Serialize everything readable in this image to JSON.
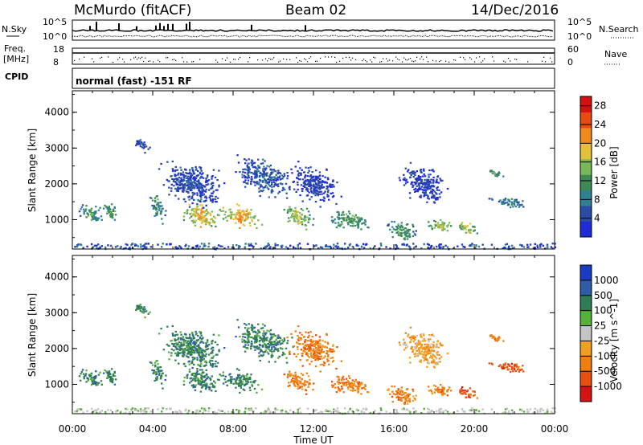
{
  "header": {
    "station": "McMurdo (fitACF)",
    "beam": "Beam 02",
    "date": "14/Dec/2016"
  },
  "top_panels": {
    "nsky_label": "N.Sky",
    "nsky_ticks": [
      "10^5",
      "10^0"
    ],
    "nsearch_label": "N.Search",
    "nsearch_ticks": [
      "10^5",
      "10^0"
    ],
    "freq_label": "Freq.",
    "freq_unit": "[MHz]",
    "freq_ticks": [
      "18",
      "8"
    ],
    "nave_label": "Nave",
    "nave_ticks": [
      "60",
      "0"
    ],
    "cpid_label": "CPID",
    "cpid_text": "normal (fast) -151 RF"
  },
  "colors": {
    "power": [
      "#1f2bd8",
      "#2a4aa8",
      "#2f7f95",
      "#3e8a55",
      "#7ab85a",
      "#e2c23a",
      "#ef8a1c",
      "#e84a12",
      "#d61010"
    ],
    "velocity": [
      "#1a3bc4",
      "#2e5da8",
      "#2f7c56",
      "#58b23a",
      "#c4c4c4",
      "#f0a020",
      "#ee7d12",
      "#e84e10",
      "#d61313"
    ],
    "ground_scatter": "#c4c4c4"
  },
  "chart_data": [
    {
      "type": "heatmap",
      "title": "",
      "xlabel": "Time UT",
      "ylabel": "Slant Range [km]",
      "xlim": [
        0,
        24
      ],
      "ylim": [
        180,
        4600
      ],
      "x_ticks": [
        "00:00",
        "04:00",
        "08:00",
        "12:00",
        "16:00",
        "20:00",
        "00:00"
      ],
      "y_ticks": [
        1000,
        2000,
        3000,
        4000
      ],
      "colorbar": {
        "label": "Power [dB]",
        "ticks": [
          4,
          8,
          12,
          16,
          20,
          24,
          28
        ],
        "range": [
          0,
          30
        ]
      },
      "blobs": [
        {
          "t": 0.9,
          "r": 1200,
          "dt": 0.75,
          "dr": 300,
          "v": 12
        },
        {
          "t": 1.9,
          "r": 1250,
          "dt": 0.55,
          "dr": 280,
          "v": 13
        },
        {
          "t": 4.2,
          "r": 1350,
          "dt": 0.5,
          "dr": 420,
          "v": 11
        },
        {
          "t": 6.4,
          "r": 1150,
          "dt": 1.1,
          "dr": 420,
          "v": 20
        },
        {
          "t": 8.3,
          "r": 1100,
          "dt": 1.2,
          "dr": 380,
          "v": 21
        },
        {
          "t": 11.2,
          "r": 1100,
          "dt": 0.9,
          "dr": 350,
          "v": 17
        },
        {
          "t": 13.8,
          "r": 1000,
          "dt": 1.4,
          "dr": 300,
          "v": 13
        },
        {
          "t": 16.4,
          "r": 700,
          "dt": 1.0,
          "dr": 300,
          "v": 12
        },
        {
          "t": 18.3,
          "r": 850,
          "dt": 0.8,
          "dr": 220,
          "v": 17
        },
        {
          "t": 19.6,
          "r": 800,
          "dt": 0.6,
          "dr": 220,
          "v": 18
        },
        {
          "t": 21.8,
          "r": 1500,
          "dt": 1.2,
          "dr": 180,
          "v": 9
        },
        {
          "t": 21.0,
          "r": 2300,
          "dt": 0.5,
          "dr": 160,
          "v": 13
        },
        {
          "t": 3.4,
          "r": 3100,
          "dt": 0.6,
          "dr": 200,
          "v": 5
        },
        {
          "t": 9.5,
          "r": 2200,
          "dt": 1.8,
          "dr": 600,
          "v": 6
        },
        {
          "t": 6.0,
          "r": 2000,
          "dt": 2.0,
          "dr": 700,
          "v": 5
        },
        {
          "t": 12.0,
          "r": 2000,
          "dt": 1.5,
          "dr": 600,
          "v": 4
        },
        {
          "t": 17.5,
          "r": 2000,
          "dt": 1.5,
          "dr": 600,
          "v": 4
        }
      ]
    },
    {
      "type": "heatmap",
      "title": "",
      "xlabel": "Time UT",
      "ylabel": "Slant Range [km]",
      "xlim": [
        0,
        24
      ],
      "ylim": [
        180,
        4600
      ],
      "x_ticks": [
        "00:00",
        "04:00",
        "08:00",
        "12:00",
        "16:00",
        "20:00",
        "00:00"
      ],
      "y_ticks": [
        1000,
        2000,
        3000,
        4000
      ],
      "colorbar": {
        "label": "Velocity [m s^-1]",
        "ticks": [
          "1000",
          "500",
          "100",
          "25",
          "-25",
          "-100",
          "-500",
          "-1000"
        ]
      },
      "blobs": [
        {
          "t": 0.9,
          "r": 1200,
          "dt": 0.75,
          "dr": 300,
          "v": 2
        },
        {
          "t": 1.9,
          "r": 1250,
          "dt": 0.55,
          "dr": 280,
          "v": 2
        },
        {
          "t": 4.2,
          "r": 1350,
          "dt": 0.5,
          "dr": 420,
          "v": 2
        },
        {
          "t": 6.4,
          "r": 1150,
          "dt": 1.1,
          "dr": 420,
          "v": 2
        },
        {
          "t": 8.3,
          "r": 1100,
          "dt": 1.2,
          "dr": 380,
          "v": 2
        },
        {
          "t": 11.2,
          "r": 1100,
          "dt": 0.9,
          "dr": 350,
          "v": 6
        },
        {
          "t": 13.8,
          "r": 1000,
          "dt": 1.4,
          "dr": 300,
          "v": 6
        },
        {
          "t": 16.4,
          "r": 700,
          "dt": 1.0,
          "dr": 300,
          "v": 6
        },
        {
          "t": 18.3,
          "r": 850,
          "dt": 0.8,
          "dr": 220,
          "v": 6
        },
        {
          "t": 19.6,
          "r": 800,
          "dt": 0.6,
          "dr": 220,
          "v": 7
        },
        {
          "t": 21.8,
          "r": 1500,
          "dt": 1.2,
          "dr": 180,
          "v": 7
        },
        {
          "t": 21.0,
          "r": 2300,
          "dt": 0.5,
          "dr": 160,
          "v": 6
        },
        {
          "t": 3.4,
          "r": 3100,
          "dt": 0.6,
          "dr": 200,
          "v": 2
        },
        {
          "t": 9.5,
          "r": 2200,
          "dt": 1.8,
          "dr": 600,
          "v": 2
        },
        {
          "t": 6.0,
          "r": 2000,
          "dt": 2.0,
          "dr": 700,
          "v": 2
        },
        {
          "t": 12.0,
          "r": 2000,
          "dt": 1.5,
          "dr": 600,
          "v": 6
        },
        {
          "t": 17.5,
          "r": 2000,
          "dt": 1.5,
          "dr": 600,
          "v": 5
        }
      ]
    }
  ]
}
